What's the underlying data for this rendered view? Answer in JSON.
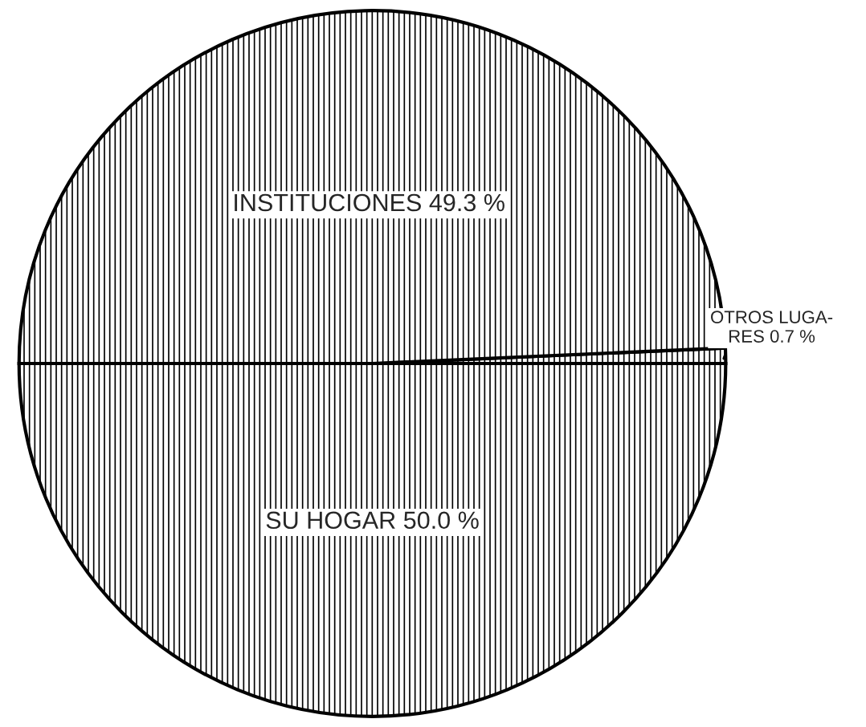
{
  "chart_data": {
    "type": "pie",
    "categories": [
      "SU HOGAR",
      "OTROS LUGA-\nRES",
      "INSTITUCIONES"
    ],
    "values": [
      50.0,
      0.7,
      49.3
    ],
    "value_labels": [
      "50.0 %",
      "0.7 %",
      "49.3 %"
    ],
    "colors": [
      "#000000",
      "#000000",
      "#000000"
    ]
  }
}
